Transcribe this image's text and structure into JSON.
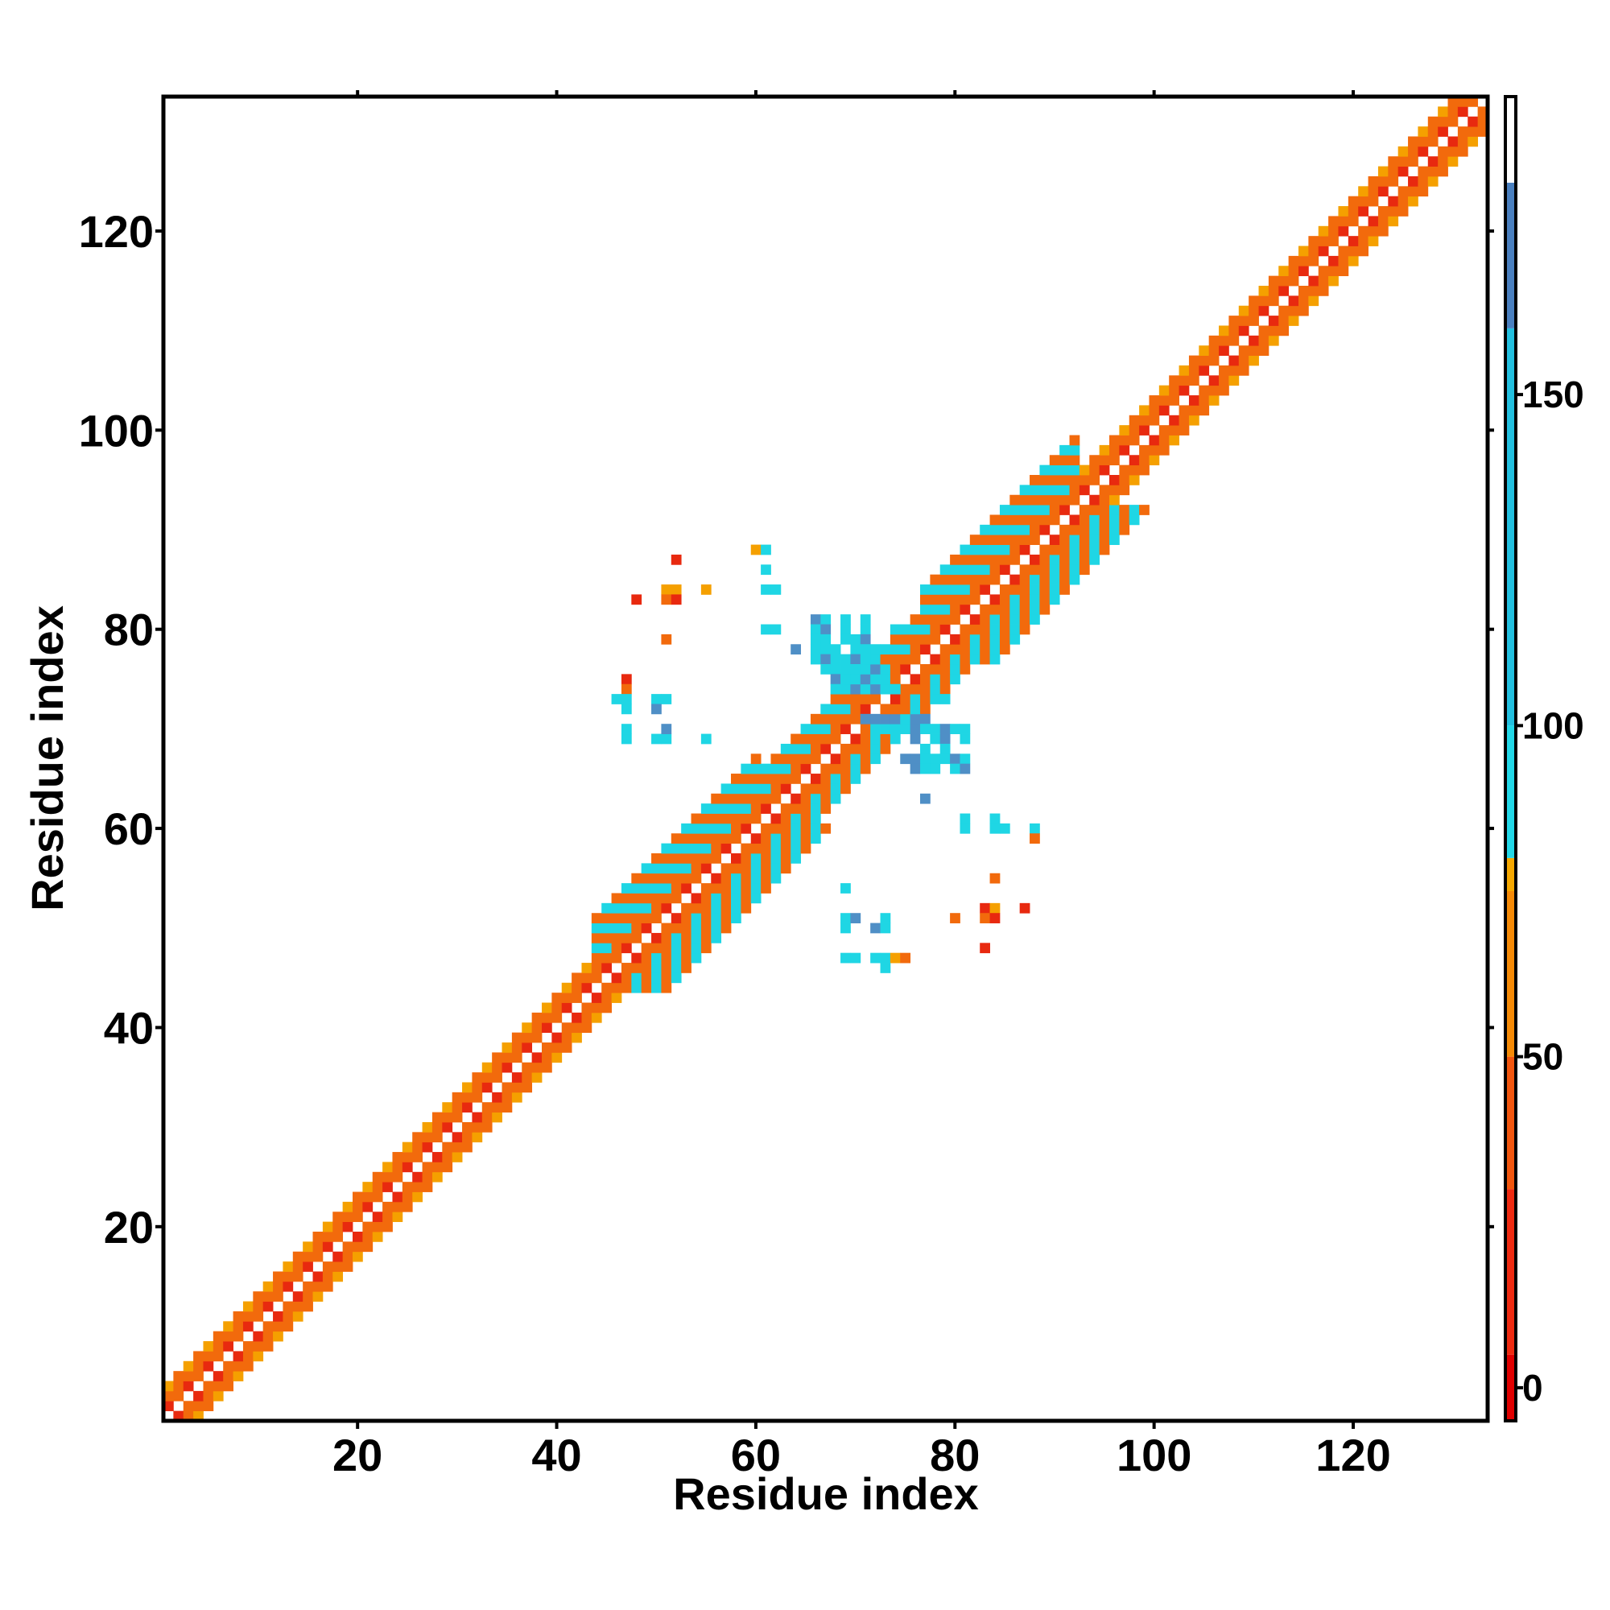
{
  "chart_data": {
    "type": "heatmap",
    "title": "",
    "xlabel": "Residue index",
    "ylabel": "Residue index",
    "xlim": [
      1,
      133
    ],
    "ylim": [
      1,
      133
    ],
    "xticks": [
      20,
      40,
      60,
      80,
      100,
      120
    ],
    "yticks": [
      20,
      40,
      60,
      80,
      100,
      120
    ],
    "grid": false,
    "colorbar": {
      "position": "right",
      "range": [
        -5,
        195
      ],
      "ticks": [
        0,
        50,
        100,
        150
      ],
      "bands": [
        {
          "from": -5,
          "to": 5,
          "color": "#e00000"
        },
        {
          "from": 5,
          "to": 30,
          "color": "#ee2a10"
        },
        {
          "from": 30,
          "to": 50,
          "color": "#f2560e"
        },
        {
          "from": 50,
          "to": 75,
          "color": "#f58a06"
        },
        {
          "from": 75,
          "to": 80,
          "color": "#f5a800"
        },
        {
          "from": 80,
          "to": 100,
          "color": "#22d8e8"
        },
        {
          "from": 100,
          "to": 160,
          "color": "#22c0e0"
        },
        {
          "from": 160,
          "to": 182,
          "color": "#4a80c0"
        },
        {
          "from": 182,
          "to": 195,
          "color": "#ffffff"
        }
      ]
    },
    "colors": {
      "red": "#e8290f",
      "darkred": "#d80000",
      "orange": "#f26a0c",
      "amber": "#f5a000",
      "cyan": "#1fd6e4",
      "steel": "#4f8fc6"
    },
    "band_segments": [
      {
        "from": 1,
        "to": 44,
        "halfwidth": 3,
        "near": "red",
        "mid": "orange",
        "far": "amber"
      },
      {
        "from": 44,
        "to": 61,
        "halfwidth": 7,
        "near": "red",
        "mid": "orange",
        "far": "cyan"
      },
      {
        "from": 61,
        "to": 77,
        "halfwidth": 5,
        "near": "red",
        "mid": "orange",
        "far": "cyan"
      },
      {
        "from": 77,
        "to": 93,
        "halfwidth": 7,
        "near": "red",
        "mid": "orange",
        "far": "cyan"
      },
      {
        "from": 93,
        "to": 133,
        "halfwidth": 3,
        "near": "red",
        "mid": "orange",
        "far": "amber"
      }
    ],
    "offdiagonal_points": [
      {
        "x": 52,
        "y": 87,
        "c": "red"
      },
      {
        "x": 60,
        "y": 88,
        "c": "amber"
      },
      {
        "x": 61,
        "y": 88,
        "c": "cyan"
      },
      {
        "x": 48,
        "y": 83,
        "c": "red"
      },
      {
        "x": 51,
        "y": 84,
        "c": "amber"
      },
      {
        "x": 52,
        "y": 84,
        "c": "amber"
      },
      {
        "x": 51,
        "y": 83,
        "c": "orange"
      },
      {
        "x": 52,
        "y": 83,
        "c": "red"
      },
      {
        "x": 55,
        "y": 84,
        "c": "amber"
      },
      {
        "x": 61,
        "y": 86,
        "c": "cyan"
      },
      {
        "x": 61,
        "y": 84,
        "c": "cyan"
      },
      {
        "x": 62,
        "y": 84,
        "c": "cyan"
      },
      {
        "x": 61,
        "y": 80,
        "c": "cyan"
      },
      {
        "x": 62,
        "y": 80,
        "c": "cyan"
      },
      {
        "x": 51,
        "y": 79,
        "c": "orange"
      },
      {
        "x": 47,
        "y": 75,
        "c": "red"
      },
      {
        "x": 47,
        "y": 74,
        "c": "orange"
      },
      {
        "x": 46,
        "y": 73,
        "c": "cyan"
      },
      {
        "x": 47,
        "y": 73,
        "c": "cyan"
      },
      {
        "x": 47,
        "y": 72,
        "c": "cyan"
      },
      {
        "x": 50,
        "y": 73,
        "c": "cyan"
      },
      {
        "x": 51,
        "y": 73,
        "c": "cyan"
      },
      {
        "x": 50,
        "y": 72,
        "c": "steel"
      },
      {
        "x": 47,
        "y": 70,
        "c": "cyan"
      },
      {
        "x": 47,
        "y": 69,
        "c": "cyan"
      },
      {
        "x": 50,
        "y": 69,
        "c": "cyan"
      },
      {
        "x": 51,
        "y": 69,
        "c": "cyan"
      },
      {
        "x": 51,
        "y": 70,
        "c": "steel"
      },
      {
        "x": 55,
        "y": 69,
        "c": "cyan"
      },
      {
        "x": 66,
        "y": 81,
        "c": "steel"
      },
      {
        "x": 67,
        "y": 81,
        "c": "cyan"
      },
      {
        "x": 66,
        "y": 80,
        "c": "cyan"
      },
      {
        "x": 67,
        "y": 80,
        "c": "steel"
      },
      {
        "x": 69,
        "y": 81,
        "c": "cyan"
      },
      {
        "x": 69,
        "y": 80,
        "c": "cyan"
      },
      {
        "x": 71,
        "y": 81,
        "c": "cyan"
      },
      {
        "x": 71,
        "y": 80,
        "c": "cyan"
      },
      {
        "x": 74,
        "y": 80,
        "c": "cyan"
      },
      {
        "x": 66,
        "y": 79,
        "c": "cyan"
      },
      {
        "x": 67,
        "y": 79,
        "c": "cyan"
      },
      {
        "x": 69,
        "y": 79,
        "c": "cyan"
      },
      {
        "x": 70,
        "y": 79,
        "c": "cyan"
      },
      {
        "x": 71,
        "y": 79,
        "c": "steel"
      },
      {
        "x": 64,
        "y": 78,
        "c": "steel"
      },
      {
        "x": 66,
        "y": 78,
        "c": "cyan"
      },
      {
        "x": 67,
        "y": 78,
        "c": "cyan"
      },
      {
        "x": 68,
        "y": 78,
        "c": "cyan"
      },
      {
        "x": 70,
        "y": 78,
        "c": "cyan"
      },
      {
        "x": 71,
        "y": 78,
        "c": "cyan"
      },
      {
        "x": 72,
        "y": 78,
        "c": "cyan"
      },
      {
        "x": 66,
        "y": 77,
        "c": "cyan"
      },
      {
        "x": 67,
        "y": 77,
        "c": "steel"
      },
      {
        "x": 68,
        "y": 77,
        "c": "cyan"
      },
      {
        "x": 69,
        "y": 77,
        "c": "cyan"
      },
      {
        "x": 70,
        "y": 77,
        "c": "steel"
      },
      {
        "x": 71,
        "y": 77,
        "c": "cyan"
      },
      {
        "x": 72,
        "y": 77,
        "c": "cyan"
      },
      {
        "x": 67,
        "y": 76,
        "c": "cyan"
      },
      {
        "x": 68,
        "y": 76,
        "c": "cyan"
      },
      {
        "x": 69,
        "y": 76,
        "c": "cyan"
      },
      {
        "x": 70,
        "y": 76,
        "c": "cyan"
      },
      {
        "x": 71,
        "y": 76,
        "c": "cyan"
      },
      {
        "x": 72,
        "y": 76,
        "c": "steel"
      },
      {
        "x": 68,
        "y": 75,
        "c": "steel"
      },
      {
        "x": 69,
        "y": 75,
        "c": "cyan"
      },
      {
        "x": 70,
        "y": 75,
        "c": "cyan"
      },
      {
        "x": 71,
        "y": 75,
        "c": "steel"
      },
      {
        "x": 72,
        "y": 75,
        "c": "cyan"
      },
      {
        "x": 73,
        "y": 75,
        "c": "cyan"
      },
      {
        "x": 68,
        "y": 74,
        "c": "cyan"
      },
      {
        "x": 70,
        "y": 74,
        "c": "steel"
      },
      {
        "x": 72,
        "y": 74,
        "c": "steel"
      },
      {
        "x": 73,
        "y": 74,
        "c": "cyan"
      },
      {
        "x": 74,
        "y": 74,
        "c": "cyan"
      },
      {
        "x": 79,
        "y": 73,
        "c": "cyan"
      },
      {
        "x": 71,
        "y": 71,
        "c": "steel"
      },
      {
        "x": 72,
        "y": 71,
        "c": "steel"
      },
      {
        "x": 73,
        "y": 71,
        "c": "steel"
      },
      {
        "x": 74,
        "y": 71,
        "c": "steel"
      },
      {
        "x": 75,
        "y": 71,
        "c": "cyan"
      },
      {
        "x": 76,
        "y": 71,
        "c": "steel"
      },
      {
        "x": 77,
        "y": 71,
        "c": "steel"
      },
      {
        "x": 72,
        "y": 70,
        "c": "cyan"
      },
      {
        "x": 73,
        "y": 70,
        "c": "cyan"
      },
      {
        "x": 74,
        "y": 70,
        "c": "cyan"
      },
      {
        "x": 75,
        "y": 70,
        "c": "cyan"
      },
      {
        "x": 76,
        "y": 70,
        "c": "steel"
      },
      {
        "x": 77,
        "y": 70,
        "c": "cyan"
      },
      {
        "x": 78,
        "y": 70,
        "c": "cyan"
      },
      {
        "x": 79,
        "y": 70,
        "c": "steel"
      },
      {
        "x": 80,
        "y": 70,
        "c": "cyan"
      },
      {
        "x": 81,
        "y": 70,
        "c": "cyan"
      },
      {
        "x": 76,
        "y": 69,
        "c": "steel"
      },
      {
        "x": 78,
        "y": 69,
        "c": "cyan"
      },
      {
        "x": 79,
        "y": 69,
        "c": "steel"
      },
      {
        "x": 81,
        "y": 69,
        "c": "cyan"
      },
      {
        "x": 77,
        "y": 68,
        "c": "cyan"
      },
      {
        "x": 79,
        "y": 68,
        "c": "cyan"
      },
      {
        "x": 75,
        "y": 67,
        "c": "steel"
      },
      {
        "x": 76,
        "y": 67,
        "c": "steel"
      },
      {
        "x": 77,
        "y": 67,
        "c": "cyan"
      },
      {
        "x": 78,
        "y": 67,
        "c": "cyan"
      },
      {
        "x": 79,
        "y": 67,
        "c": "cyan"
      },
      {
        "x": 80,
        "y": 67,
        "c": "steel"
      },
      {
        "x": 81,
        "y": 67,
        "c": "cyan"
      },
      {
        "x": 76,
        "y": 66,
        "c": "steel"
      },
      {
        "x": 77,
        "y": 66,
        "c": "cyan"
      },
      {
        "x": 78,
        "y": 66,
        "c": "cyan"
      },
      {
        "x": 80,
        "y": 66,
        "c": "cyan"
      },
      {
        "x": 81,
        "y": 66,
        "c": "steel"
      },
      {
        "x": 77,
        "y": 63,
        "c": "steel"
      },
      {
        "x": 81,
        "y": 61,
        "c": "cyan"
      },
      {
        "x": 81,
        "y": 60,
        "c": "cyan"
      },
      {
        "x": 84,
        "y": 61,
        "c": "cyan"
      },
      {
        "x": 85,
        "y": 60,
        "c": "cyan"
      },
      {
        "x": 84,
        "y": 60,
        "c": "cyan"
      },
      {
        "x": 88,
        "y": 60,
        "c": "cyan"
      },
      {
        "x": 88,
        "y": 59,
        "c": "orange"
      },
      {
        "x": 84,
        "y": 55,
        "c": "orange"
      },
      {
        "x": 69,
        "y": 54,
        "c": "cyan"
      },
      {
        "x": 83,
        "y": 52,
        "c": "red"
      },
      {
        "x": 84,
        "y": 52,
        "c": "amber"
      },
      {
        "x": 87,
        "y": 52,
        "c": "red"
      },
      {
        "x": 80,
        "y": 51,
        "c": "orange"
      },
      {
        "x": 83,
        "y": 51,
        "c": "orange"
      },
      {
        "x": 84,
        "y": 51,
        "c": "red"
      },
      {
        "x": 69,
        "y": 51,
        "c": "cyan"
      },
      {
        "x": 70,
        "y": 51,
        "c": "steel"
      },
      {
        "x": 73,
        "y": 51,
        "c": "cyan"
      },
      {
        "x": 69,
        "y": 50,
        "c": "cyan"
      },
      {
        "x": 72,
        "y": 50,
        "c": "steel"
      },
      {
        "x": 73,
        "y": 50,
        "c": "cyan"
      },
      {
        "x": 83,
        "y": 48,
        "c": "red"
      },
      {
        "x": 69,
        "y": 47,
        "c": "cyan"
      },
      {
        "x": 70,
        "y": 47,
        "c": "cyan"
      },
      {
        "x": 72,
        "y": 47,
        "c": "cyan"
      },
      {
        "x": 73,
        "y": 47,
        "c": "cyan"
      },
      {
        "x": 74,
        "y": 47,
        "c": "amber"
      },
      {
        "x": 75,
        "y": 47,
        "c": "orange"
      },
      {
        "x": 73,
        "y": 46,
        "c": "cyan"
      }
    ]
  }
}
